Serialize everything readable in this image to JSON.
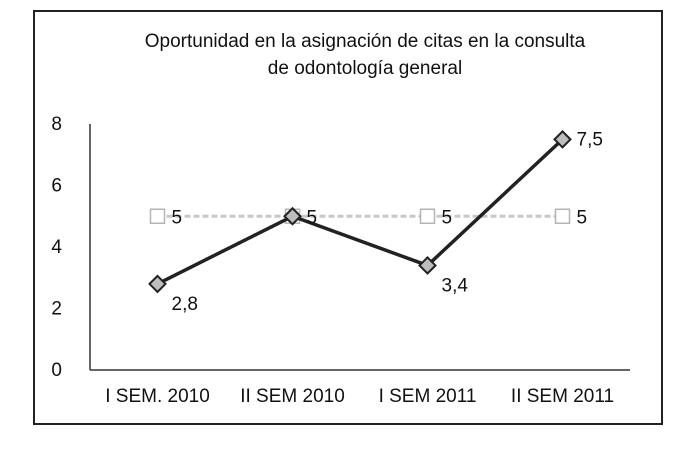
{
  "chart_data": {
    "type": "line",
    "title": [
      "Oportunidad en la asignación de citas en la consulta",
      "de odontología general"
    ],
    "categories": [
      "I SEM. 2010",
      "II SEM 2010",
      "I SEM 2011",
      "II SEM 2011"
    ],
    "series": [
      {
        "values": [
          2.8,
          5,
          3.4,
          7.5
        ],
        "labels": [
          "2,8",
          "",
          "3,4",
          "7,5"
        ],
        "color": "#222222",
        "marker": "diamond"
      },
      {
        "values": [
          5,
          5,
          5,
          5
        ],
        "labels": [
          "5",
          "5",
          "5",
          "5"
        ],
        "color": "#c8c8c8",
        "marker": "square"
      }
    ],
    "y_ticks": [
      "0",
      "2",
      "4",
      "6",
      "8"
    ],
    "ylim": [
      0,
      8
    ],
    "grid": false,
    "legend": false
  }
}
